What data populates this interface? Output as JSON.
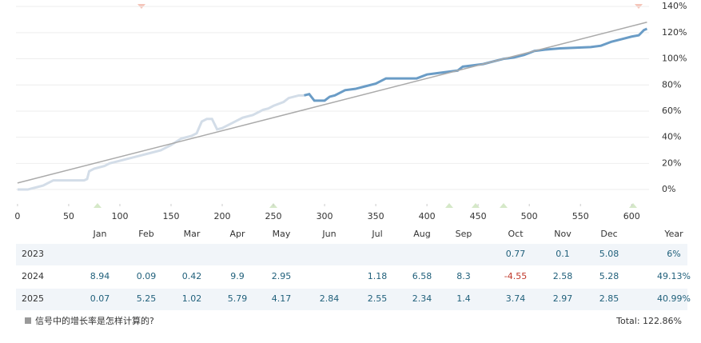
{
  "chart_data": {
    "type": "line",
    "xlim": [
      -1.5,
      617
    ],
    "ylim": [
      -11,
      145
    ],
    "xticks": [
      0,
      50,
      100,
      150,
      200,
      250,
      300,
      350,
      400,
      450,
      500,
      550,
      600
    ],
    "yticks": [
      {
        "value": 0,
        "label": "0%"
      },
      {
        "value": 20,
        "label": "20%"
      },
      {
        "value": 40,
        "label": "40%"
      },
      {
        "value": 60,
        "label": "60%"
      },
      {
        "value": 80,
        "label": "80%"
      },
      {
        "value": 100,
        "label": "100%"
      },
      {
        "value": 120,
        "label": "120%"
      },
      {
        "value": 140,
        "label": "140%"
      }
    ],
    "grid": true,
    "series": [
      {
        "color": "#d3dde8",
        "x": [
          0,
          10,
          15,
          20,
          25,
          30,
          35,
          45,
          60,
          65,
          68,
          70,
          75,
          85,
          90,
          95,
          100,
          110,
          120,
          130,
          140,
          145,
          150,
          160,
          170,
          175,
          180,
          185,
          190,
          195,
          200,
          205,
          210,
          220,
          230,
          240,
          245,
          250,
          260,
          265,
          275,
          280
        ],
        "values": [
          0,
          0,
          1,
          2,
          3,
          5,
          7,
          7,
          7,
          7,
          8,
          14,
          16,
          18,
          20,
          21,
          22,
          24,
          26,
          28,
          30,
          32,
          34,
          39,
          41,
          43,
          52,
          54,
          54,
          46,
          47,
          49,
          51,
          55,
          57,
          61,
          62,
          64,
          67,
          70,
          72,
          72
        ]
      },
      {
        "color": "#6a9cc6",
        "x": [
          280,
          285,
          290,
          300,
          305,
          310,
          320,
          330,
          340,
          350,
          360,
          370,
          380,
          390,
          400,
          410,
          420,
          430,
          435,
          445,
          455,
          465,
          475,
          485,
          495,
          505,
          515,
          530,
          560,
          570,
          580,
          590,
          600,
          607,
          612,
          615
        ],
        "values": [
          72,
          73,
          68,
          68,
          71,
          72,
          76,
          77,
          79,
          81,
          85,
          85,
          85,
          85,
          88,
          89,
          90,
          91,
          94,
          95,
          96,
          98,
          100,
          101,
          103,
          106,
          107,
          108,
          109,
          110,
          113,
          115,
          117,
          118,
          122,
          123
        ]
      },
      {
        "color": "#aaaaaa",
        "x": [
          0,
          615
        ],
        "values": [
          5,
          128
        ]
      }
    ]
  },
  "table": {
    "header": [
      null,
      "Jan",
      "Feb",
      "Mar",
      "Apr",
      "May",
      "Jun",
      "Jul",
      "Aug",
      "Sep",
      "Oct",
      "Nov",
      "Dec",
      "Year"
    ],
    "rows": [
      [
        "2023",
        null,
        null,
        null,
        null,
        null,
        null,
        null,
        null,
        null,
        "0.77",
        "0.1",
        "5.08",
        "6%"
      ],
      [
        "2024",
        "8.94",
        "0.09",
        "0.42",
        "9.9",
        "2.95",
        null,
        "1.18",
        "6.58",
        "8.3",
        "-4.55",
        "2.58",
        "5.28",
        "49.13%"
      ],
      [
        "2025",
        "0.07",
        "5.25",
        "1.02",
        "5.79",
        "4.17",
        "2.84",
        "2.55",
        "2.34",
        "1.4",
        "3.74",
        "2.97",
        "2.85",
        "40.99%"
      ]
    ]
  },
  "footer": {
    "question": "信号中的增长率是怎样计算的?",
    "total": "Total: 122.86%"
  }
}
